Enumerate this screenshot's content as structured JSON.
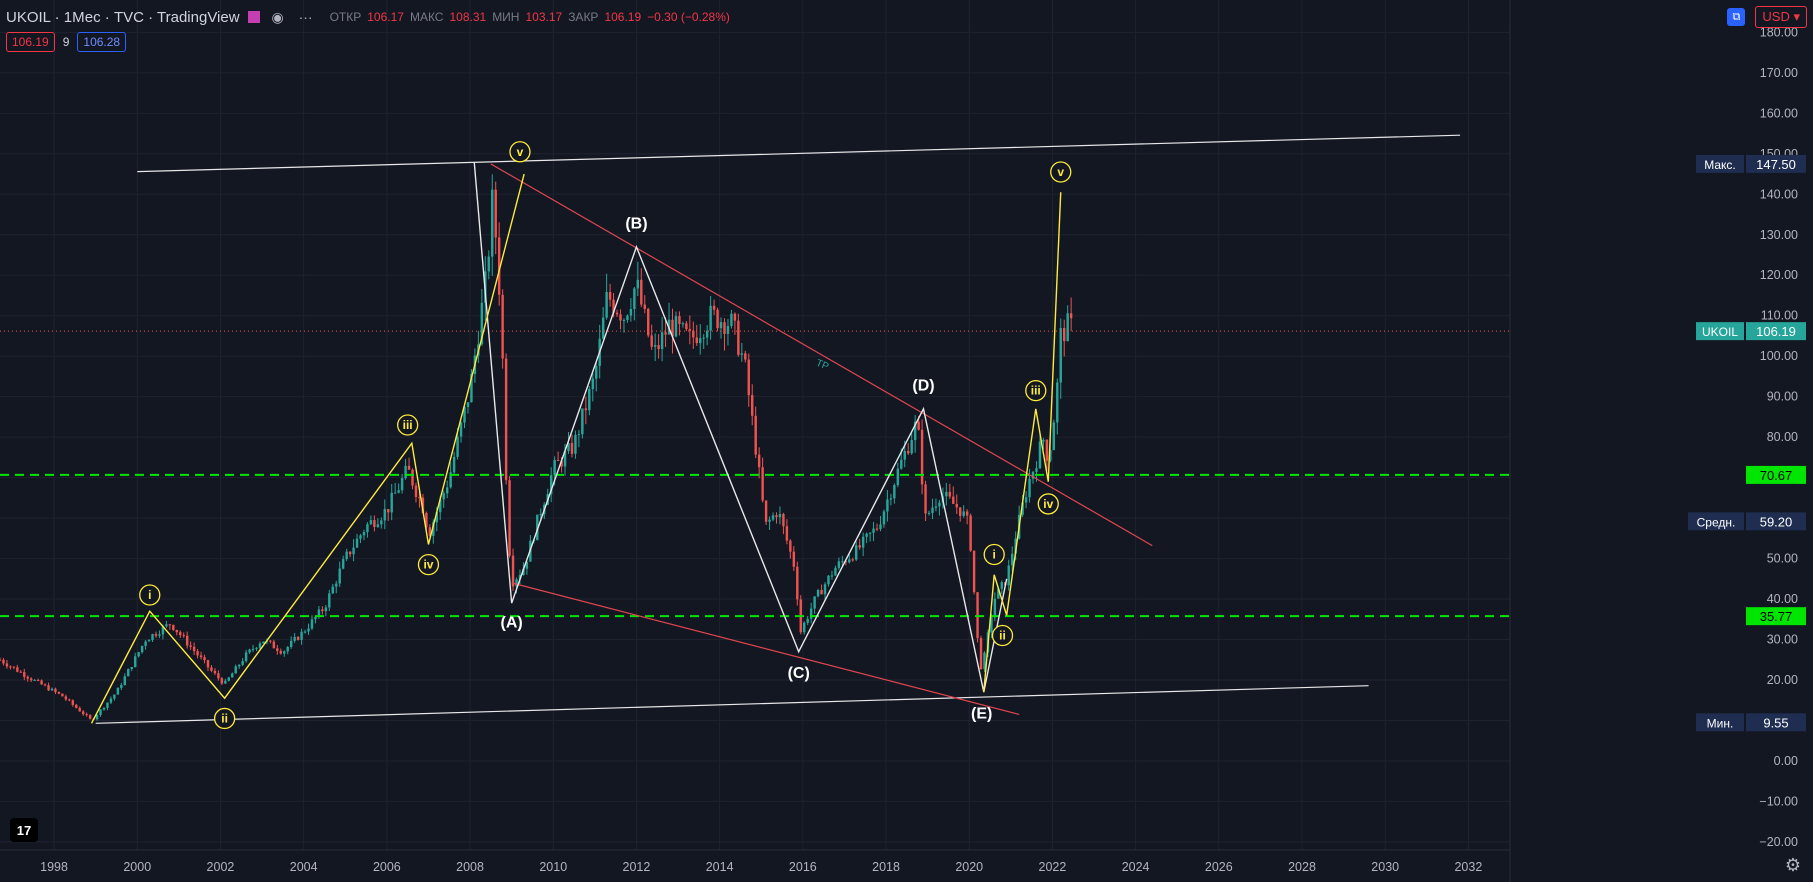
{
  "header": {
    "symbol": "UKOIL · 1Мес · TVC · TradingView",
    "open_label": "ОТКР",
    "open": "106.17",
    "high_label": "МАКС",
    "high": "108.31",
    "low_label": "МИН",
    "low": "103.17",
    "close_label": "ЗАКР",
    "close": "106.19",
    "change": "−0.30 (−0.28%)",
    "bid": "106.19",
    "spread": "9",
    "ask": "106.28",
    "currency": "USD",
    "logo_text": "17"
  },
  "colors": {
    "background": "#131722",
    "up": "#26a69a",
    "down": "#ef5350",
    "yellow": "#ffeb3b",
    "red_line": "#e0464f",
    "green_dash": "#00e600",
    "white": "#e8e8e8"
  },
  "chart_data": {
    "type": "candlestick",
    "xlim": [
      1996.7,
      2033.0
    ],
    "ylim": [
      -22,
      188
    ],
    "x_ticks": [
      "1998",
      "2000",
      "2002",
      "2004",
      "2006",
      "2008",
      "2010",
      "2012",
      "2014",
      "2016",
      "2018",
      "2020",
      "2022",
      "2024",
      "2026",
      "2028",
      "2030",
      "2032"
    ],
    "y_ticks": [
      "−20.00",
      "−10.00",
      "0.00",
      "10.00",
      "20.00",
      "30.00",
      "40.00",
      "50.00",
      "60.00",
      "70.00",
      "80.00",
      "90.00",
      "100.00",
      "110.00",
      "120.00",
      "130.00",
      "140.00",
      "150.00",
      "160.00",
      "170.00",
      "180.00"
    ],
    "price_keypoints": [
      [
        1996.7,
        25
      ],
      [
        1997.5,
        20
      ],
      [
        1998.2,
        16
      ],
      [
        1998.9,
        10
      ],
      [
        1999.5,
        17
      ],
      [
        2000.2,
        30
      ],
      [
        2000.8,
        34
      ],
      [
        2001.3,
        28
      ],
      [
        2001.8,
        22
      ],
      [
        2002.1,
        19
      ],
      [
        2002.6,
        26
      ],
      [
        2003.0,
        30
      ],
      [
        2003.5,
        27
      ],
      [
        2004.0,
        32
      ],
      [
        2004.5,
        38
      ],
      [
        2005.0,
        50
      ],
      [
        2005.5,
        58
      ],
      [
        2006.0,
        62
      ],
      [
        2006.5,
        72
      ],
      [
        2006.9,
        62
      ],
      [
        2007.0,
        56
      ],
      [
        2007.5,
        70
      ],
      [
        2008.0,
        92
      ],
      [
        2008.4,
        120
      ],
      [
        2008.55,
        140
      ],
      [
        2008.75,
        110
      ],
      [
        2008.9,
        60
      ],
      [
        2009.0,
        44
      ],
      [
        2009.3,
        48
      ],
      [
        2009.7,
        62
      ],
      [
        2010.0,
        72
      ],
      [
        2010.5,
        78
      ],
      [
        2011.0,
        95
      ],
      [
        2011.3,
        115
      ],
      [
        2011.7,
        110
      ],
      [
        2012.0,
        118
      ],
      [
        2012.4,
        100
      ],
      [
        2012.8,
        108
      ],
      [
        2013.3,
        104
      ],
      [
        2013.8,
        110
      ],
      [
        2014.3,
        108
      ],
      [
        2014.6,
        98
      ],
      [
        2014.9,
        75
      ],
      [
        2015.1,
        58
      ],
      [
        2015.4,
        62
      ],
      [
        2015.8,
        48
      ],
      [
        2015.95,
        32
      ],
      [
        2016.3,
        40
      ],
      [
        2016.8,
        48
      ],
      [
        2017.3,
        52
      ],
      [
        2017.8,
        58
      ],
      [
        2018.3,
        72
      ],
      [
        2018.75,
        84
      ],
      [
        2018.95,
        60
      ],
      [
        2019.3,
        66
      ],
      [
        2019.8,
        62
      ],
      [
        2020.0,
        58
      ],
      [
        2020.2,
        30
      ],
      [
        2020.3,
        22
      ],
      [
        2020.6,
        40
      ],
      [
        2020.9,
        45
      ],
      [
        2021.1,
        55
      ],
      [
        2021.4,
        68
      ],
      [
        2021.8,
        80
      ],
      [
        2021.9,
        74
      ],
      [
        2022.1,
        90
      ],
      [
        2022.2,
        105
      ],
      [
        2022.4,
        108
      ],
      [
        2022.5,
        106.19
      ]
    ],
    "markers": {
      "last_price": 106.19,
      "max": 147.5,
      "avg": 59.2,
      "min": 9.55,
      "level_high": 70.67,
      "level_low": 35.77
    },
    "labels": {
      "last_price_tag": "UKOIL",
      "max_tag": "Макс.",
      "avg_tag": "Средн.",
      "min_tag": "Мин.",
      "tp_text": "ТР"
    },
    "price_labels": {
      "last": "106.19",
      "max": "147.50",
      "avg": "59.20",
      "min": "9.55",
      "level_high": "70.67",
      "level_low": "35.77"
    },
    "channel_lines": [
      {
        "from": [
          2000.0,
          145.6
        ],
        "to": [
          2031.8,
          154.6
        ]
      },
      {
        "from": [
          1999.0,
          9.3
        ],
        "to": [
          2029.6,
          18.6
        ]
      }
    ],
    "triangle_lines": [
      {
        "from": [
          2008.5,
          147.5
        ],
        "to": [
          2024.4,
          53.2
        ]
      },
      {
        "from": [
          2009.0,
          44
        ],
        "to": [
          2021.2,
          11.5
        ]
      }
    ],
    "abcde_wave": [
      [
        2008.1,
        148
      ],
      [
        2009.0,
        39
      ],
      [
        2012.0,
        127
      ],
      [
        2015.9,
        27
      ],
      [
        2018.9,
        87
      ],
      [
        2020.35,
        17
      ],
      [
        2020.9,
        45
      ]
    ],
    "abcde_labels": [
      {
        "text": "(A)",
        "x": 2009.0,
        "y": 35.5,
        "pos": "below"
      },
      {
        "text": "(B)",
        "x": 2012.0,
        "y": 131.5,
        "pos": "above"
      },
      {
        "text": "(C)",
        "x": 2015.9,
        "y": 23,
        "pos": "below"
      },
      {
        "text": "(D)",
        "x": 2018.9,
        "y": 91.5,
        "pos": "above"
      },
      {
        "text": "(E)",
        "x": 2020.3,
        "y": 13,
        "pos": "below"
      }
    ],
    "impulse_old": [
      [
        1998.9,
        9.3
      ],
      [
        2000.3,
        37
      ],
      [
        2002.1,
        15.5
      ],
      [
        2006.6,
        78.5
      ],
      [
        2007.0,
        53.5
      ],
      [
        2009.3,
        145
      ]
    ],
    "impulse_old_labels": [
      {
        "text": "i",
        "x": 2000.3,
        "y": 41
      },
      {
        "text": "ii",
        "x": 2002.1,
        "y": 10.5
      },
      {
        "text": "iii",
        "x": 2006.5,
        "y": 83
      },
      {
        "text": "iv",
        "x": 2007.0,
        "y": 48.5
      },
      {
        "text": "v",
        "x": 2009.2,
        "y": 150.5
      }
    ],
    "impulse_new": [
      [
        2020.35,
        17
      ],
      [
        2020.6,
        46
      ],
      [
        2020.9,
        36
      ],
      [
        2021.6,
        87
      ],
      [
        2021.9,
        69
      ],
      [
        2022.2,
        140.5
      ]
    ],
    "impulse_new_labels": [
      {
        "text": "i",
        "x": 2020.6,
        "y": 51
      },
      {
        "text": "ii",
        "x": 2020.8,
        "y": 31
      },
      {
        "text": "iii",
        "x": 2021.6,
        "y": 91.5
      },
      {
        "text": "iv",
        "x": 2021.9,
        "y": 63.5
      },
      {
        "text": "v",
        "x": 2022.2,
        "y": 145.5
      }
    ]
  }
}
